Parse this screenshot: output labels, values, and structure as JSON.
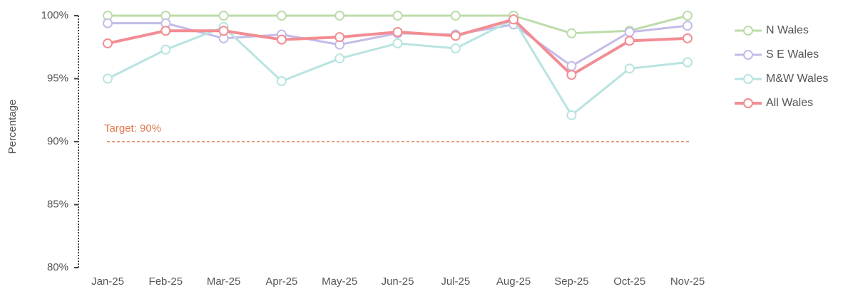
{
  "chart_data": {
    "type": "line",
    "ylabel": "Percentage",
    "categories": [
      "Jan-25",
      "Feb-25",
      "Mar-25",
      "Apr-25",
      "May-25",
      "Jun-25",
      "Jul-25",
      "Aug-25",
      "Sep-25",
      "Oct-25",
      "Nov-25"
    ],
    "series": [
      {
        "name": "N Wales",
        "color": "#bcdcaa",
        "values": [
          100,
          100,
          100,
          100,
          100,
          100,
          100,
          100,
          98.6,
          98.8,
          100
        ]
      },
      {
        "name": "S E Wales",
        "color": "#c4bbe8",
        "values": [
          99.4,
          99.4,
          98.2,
          98.5,
          97.7,
          98.6,
          98.5,
          99.3,
          96.0,
          98.7,
          99.2
        ]
      },
      {
        "name": "M&W Wales",
        "color": "#b8e4e0",
        "values": [
          95.0,
          97.3,
          99.1,
          94.8,
          96.6,
          97.8,
          97.4,
          99.7,
          92.1,
          95.8,
          96.3
        ]
      },
      {
        "name": "All Wales",
        "color": "#f28d93",
        "values": [
          97.8,
          98.8,
          98.8,
          98.1,
          98.3,
          98.7,
          98.4,
          99.7,
          95.3,
          98.0,
          98.2
        ]
      }
    ],
    "target": {
      "label": "Target: 90%",
      "value": 90,
      "color": "#e07a4f"
    },
    "ylim": [
      80,
      100
    ],
    "yticks": [
      {
        "value": 80,
        "label": "80%"
      },
      {
        "value": 85,
        "label": "85%"
      },
      {
        "value": 90,
        "label": "90%"
      },
      {
        "value": 95,
        "label": "95%"
      },
      {
        "value": 100,
        "label": "100%"
      }
    ],
    "legend": "right"
  }
}
